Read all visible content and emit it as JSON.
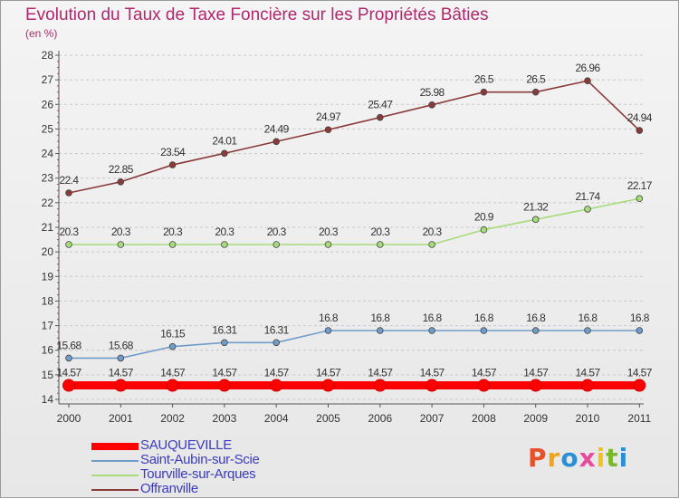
{
  "title": "Evolution du Taux de Taxe Foncière sur les Propriétés Bâties",
  "subtitle": "(en %)",
  "logo": {
    "letters": [
      "P",
      "r",
      "o",
      "x",
      "i",
      "t",
      "i"
    ],
    "colors": [
      "#e8502a",
      "#f2a51b",
      "#2b8fd6",
      "#e84b9e",
      "#f2c31b",
      "#79b829",
      "#2b8fd6"
    ]
  },
  "chart_data": {
    "type": "line",
    "x": [
      2000,
      2001,
      2002,
      2003,
      2004,
      2005,
      2006,
      2007,
      2008,
      2009,
      2010,
      2011
    ],
    "ylim": [
      14,
      28
    ],
    "yticks": [
      14,
      15,
      16,
      17,
      18,
      19,
      20,
      21,
      22,
      23,
      24,
      25,
      26,
      27,
      28
    ],
    "grid": "horizontal dashed",
    "legend_position": "bottom-left",
    "series": [
      {
        "name": "SAUQUEVILLE",
        "color": "#ff0000",
        "values": [
          14.57,
          14.57,
          14.57,
          14.57,
          14.57,
          14.57,
          14.57,
          14.57,
          14.57,
          14.57,
          14.57,
          14.57
        ],
        "labels": [
          "14.57",
          "14.57",
          "14.57",
          "14.57",
          "14.57",
          "14.57",
          "14.57",
          "14.57",
          "14.57",
          "14.57",
          "14.57",
          "14.57"
        ]
      },
      {
        "name": "Saint-Aubin-sur-Scie",
        "color": "#6f9cc9",
        "values": [
          15.68,
          15.68,
          16.15,
          16.31,
          16.31,
          16.8,
          16.8,
          16.8,
          16.8,
          16.8,
          16.8,
          16.8
        ],
        "labels": [
          "15.68",
          "15.68",
          "16.15",
          "16.31",
          "16.31",
          "16.8",
          "16.8",
          "16.8",
          "16.8",
          "16.8",
          "16.8",
          "16.8"
        ]
      },
      {
        "name": "Tourville-sur-Arques",
        "color": "#a6dc7a",
        "values": [
          20.3,
          20.3,
          20.3,
          20.3,
          20.3,
          20.3,
          20.3,
          20.3,
          20.9,
          21.32,
          21.74,
          22.17
        ],
        "labels": [
          "20.3",
          "20.3",
          "20.3",
          "20.3",
          "20.3",
          "20.3",
          "20.3",
          "20.3",
          "20.9",
          "21.32",
          "21.74",
          "22.17"
        ]
      },
      {
        "name": "Offranville",
        "color": "#8b3a3a",
        "values": [
          22.4,
          22.85,
          23.54,
          24.01,
          24.49,
          24.97,
          25.47,
          25.98,
          26.5,
          26.5,
          26.96,
          24.94
        ],
        "labels": [
          "22.4",
          "22.85",
          "23.54",
          "24.01",
          "24.49",
          "24.97",
          "25.47",
          "25.98",
          "26.5",
          "26.5",
          "26.96",
          "24.94"
        ]
      }
    ]
  }
}
